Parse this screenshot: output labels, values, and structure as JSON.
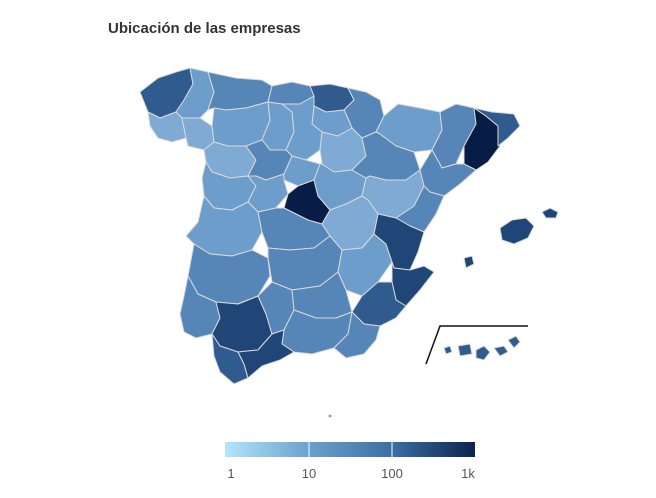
{
  "title": "Ubicación de las empresas",
  "legend": {
    "labels": [
      "1",
      "10",
      "100",
      "1k"
    ],
    "colors": [
      "#b3e5fc",
      "#6aa0cc",
      "#3b6fa2",
      "#0b2350"
    ]
  },
  "palette": {
    "lightest": "#7eaad4",
    "light": "#6d9dcb",
    "mid": "#5685b8",
    "midDark": "#4674a9",
    "dark": "#2f5b8e",
    "darker": "#1f4677",
    "darkest": "#071d45"
  },
  "chart_data": {
    "type": "choropleth",
    "scale": "log",
    "legend_ticks": [
      "1",
      "10",
      "100",
      "1k"
    ],
    "regions": [
      {
        "name": "Galicia-A Coruña",
        "level": "dark"
      },
      {
        "name": "Lugo",
        "level": "light"
      },
      {
        "name": "Pontevedra",
        "level": "lightest"
      },
      {
        "name": "Ourense",
        "level": "lightest"
      },
      {
        "name": "Asturias",
        "level": "mid"
      },
      {
        "name": "Cantabria",
        "level": "mid"
      },
      {
        "name": "País Vasco",
        "level": "dark"
      },
      {
        "name": "Navarra",
        "level": "mid"
      },
      {
        "name": "La Rioja",
        "level": "light"
      },
      {
        "name": "León",
        "level": "light"
      },
      {
        "name": "Zamora",
        "level": "lightest"
      },
      {
        "name": "Palencia",
        "level": "light"
      },
      {
        "name": "Burgos",
        "level": "light"
      },
      {
        "name": "Soria",
        "level": "lightest"
      },
      {
        "name": "Valladolid",
        "level": "mid"
      },
      {
        "name": "Segovia",
        "level": "light"
      },
      {
        "name": "Salamanca",
        "level": "light"
      },
      {
        "name": "Ávila",
        "level": "light"
      },
      {
        "name": "Madrid",
        "level": "darkest"
      },
      {
        "name": "Guadalajara",
        "level": "light"
      },
      {
        "name": "Huesca",
        "level": "light"
      },
      {
        "name": "Zaragoza",
        "level": "mid"
      },
      {
        "name": "Teruel",
        "level": "lightest"
      },
      {
        "name": "Lleida",
        "level": "mid"
      },
      {
        "name": "Barcelona",
        "level": "darkest"
      },
      {
        "name": "Girona",
        "level": "dark"
      },
      {
        "name": "Tarragona",
        "level": "mid"
      },
      {
        "name": "Cáceres",
        "level": "light"
      },
      {
        "name": "Badajoz",
        "level": "mid"
      },
      {
        "name": "Toledo",
        "level": "mid"
      },
      {
        "name": "Cuenca",
        "level": "lightest"
      },
      {
        "name": "Ciudad Real",
        "level": "mid"
      },
      {
        "name": "Albacete",
        "level": "light"
      },
      {
        "name": "Castellón",
        "level": "mid"
      },
      {
        "name": "Valencia",
        "level": "darker"
      },
      {
        "name": "Alicante",
        "level": "darker"
      },
      {
        "name": "Murcia",
        "level": "dark"
      },
      {
        "name": "Huelva",
        "level": "mid"
      },
      {
        "name": "Sevilla",
        "level": "darker"
      },
      {
        "name": "Córdoba",
        "level": "mid"
      },
      {
        "name": "Jaén",
        "level": "mid"
      },
      {
        "name": "Granada",
        "level": "mid"
      },
      {
        "name": "Almería",
        "level": "mid"
      },
      {
        "name": "Cádiz",
        "level": "dark"
      },
      {
        "name": "Málaga",
        "level": "darker"
      },
      {
        "name": "Illes Balears",
        "level": "darker"
      },
      {
        "name": "Canarias",
        "level": "dark"
      }
    ]
  }
}
